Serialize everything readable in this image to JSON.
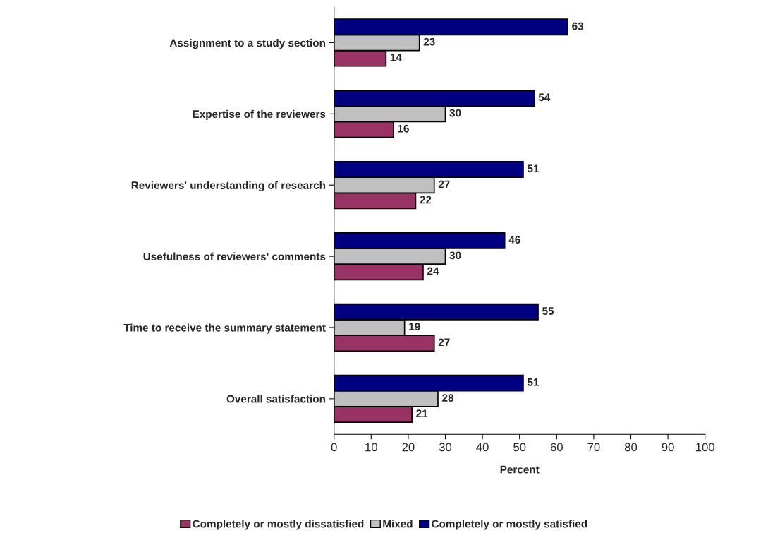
{
  "chart_data": {
    "type": "bar",
    "orientation": "horizontal",
    "xlabel": "Percent",
    "categories": [
      "Assignment to a study section",
      "Expertise of the reviewers",
      "Reviewers' understanding of research",
      "Usefulness of reviewers' comments",
      "Time to receive the summary statement",
      "Overall satisfaction"
    ],
    "series": [
      {
        "name": "Completely or mostly dissatisfied",
        "color": "#993366",
        "values": [
          14,
          16,
          22,
          24,
          27,
          21
        ]
      },
      {
        "name": "Mixed",
        "color": "#c0c0c0",
        "values": [
          23,
          30,
          27,
          30,
          19,
          28
        ]
      },
      {
        "name": "Completely or mostly satisfied",
        "color": "#000080",
        "values": [
          63,
          54,
          51,
          46,
          55,
          51
        ]
      }
    ],
    "xlim": [
      0,
      100
    ],
    "xticks": [
      0,
      10,
      20,
      30,
      40,
      50,
      60,
      70,
      80,
      90,
      100
    ],
    "data_labels": true,
    "grid": false,
    "legend": "bottom"
  }
}
